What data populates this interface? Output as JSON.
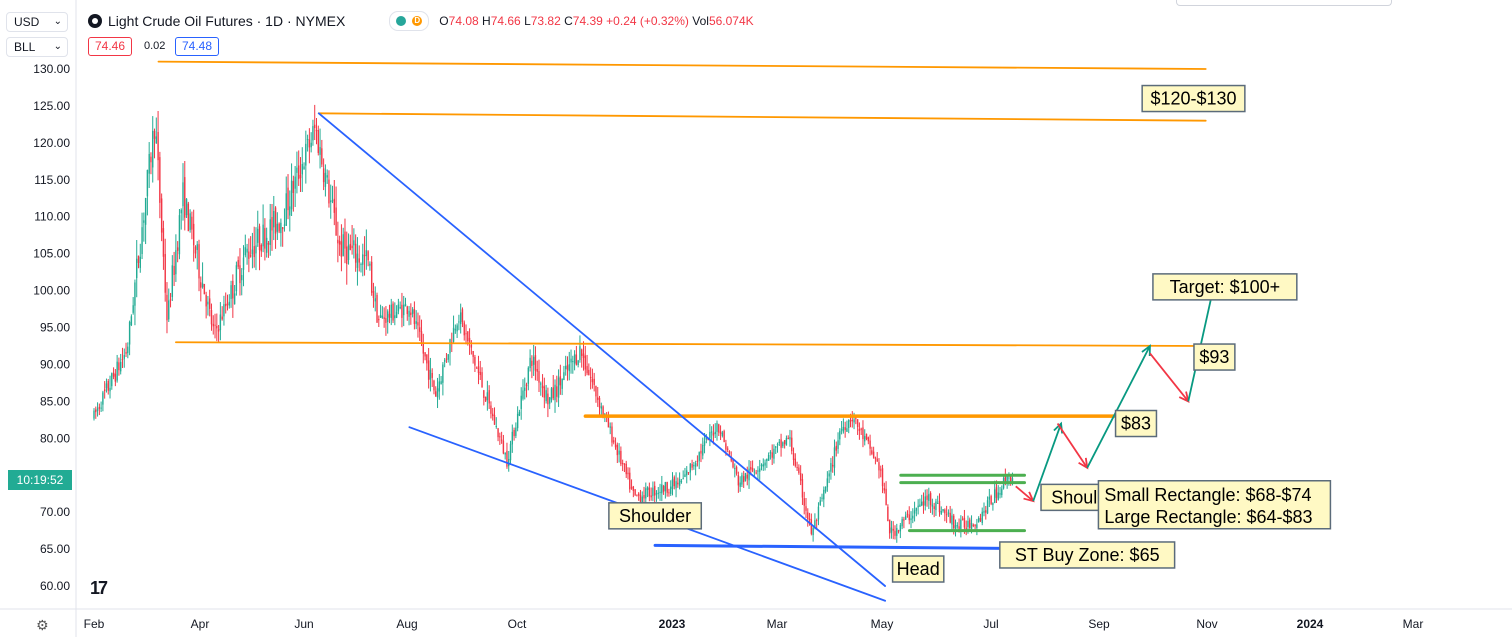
{
  "toolbar": {
    "currency": "USD",
    "unit": "BLL",
    "bid": "74.46",
    "spread": "0.02",
    "ask": "74.48",
    "countdown": "10:19:52"
  },
  "legend": {
    "symbol": "Light Crude Oil Futures · 1D · NYMEX",
    "market_status_icon": "green-dot",
    "delayed_badge": "D",
    "open_label": "O",
    "open": "74.08",
    "high_label": "H",
    "high": "74.66",
    "low_label": "L",
    "low": "73.82",
    "close_label": "C",
    "close": "74.39",
    "change": "+0.24 (+0.32%)",
    "volume_label": "Vol",
    "volume": "56.074K"
  },
  "colors": {
    "up": "#22ab94",
    "down": "#f23645",
    "orange": "#ff9800",
    "blue": "#2962ff",
    "green": "#4caf50",
    "note_bg": "#fff9c4"
  },
  "chart_data": {
    "type": "candlestick",
    "title": "Light Crude Oil Futures · 1D · NYMEX",
    "y_ticks": [
      "130.00",
      "125.00",
      "120.00",
      "115.00",
      "110.00",
      "105.00",
      "100.00",
      "95.00",
      "90.00",
      "85.00",
      "80.00",
      "75.00",
      "70.00",
      "65.00",
      "60.00"
    ],
    "x_ticks": [
      "Feb",
      "Apr",
      "Jun",
      "Aug",
      "Oct",
      "2023",
      "Mar",
      "May",
      "Jul",
      "Sep",
      "Nov",
      "2024",
      "Mar"
    ],
    "ylim": [
      57,
      133
    ],
    "last_price": 74.39,
    "price_path": [
      [
        "2022-02-01",
        83
      ],
      [
        "2022-02-20",
        92
      ],
      [
        "2022-03-08",
        123
      ],
      [
        "2022-03-15",
        96
      ],
      [
        "2022-03-24",
        113
      ],
      [
        "2022-04-11",
        94
      ],
      [
        "2022-04-29",
        105
      ],
      [
        "2022-05-20",
        110
      ],
      [
        "2022-06-08",
        122
      ],
      [
        "2022-06-22",
        106
      ],
      [
        "2022-07-08",
        104
      ],
      [
        "2022-07-14",
        96
      ],
      [
        "2022-08-01",
        98
      ],
      [
        "2022-08-16",
        86
      ],
      [
        "2022-08-29",
        97
      ],
      [
        "2022-09-26",
        77
      ],
      [
        "2022-10-10",
        91
      ],
      [
        "2022-10-20",
        85
      ],
      [
        "2022-11-07",
        92
      ],
      [
        "2022-12-08",
        72
      ],
      [
        "2023-01-04",
        74
      ],
      [
        "2023-01-25",
        82
      ],
      [
        "2023-02-06",
        74
      ],
      [
        "2023-03-07",
        80
      ],
      [
        "2023-03-20",
        67
      ],
      [
        "2023-03-30",
        75
      ],
      [
        "2023-04-05",
        81
      ],
      [
        "2023-04-12",
        83
      ],
      [
        "2023-04-28",
        76
      ],
      [
        "2023-05-04",
        67
      ],
      [
        "2023-05-26",
        72
      ],
      [
        "2023-06-12",
        68
      ],
      [
        "2023-06-23",
        69
      ],
      [
        "2023-07-11",
        75
      ],
      [
        "2023-07-14",
        74.4
      ]
    ],
    "annotations": {
      "lines": [
        {
          "name": "resistance-130",
          "color": "orange",
          "from": [
            "2022-03-10",
            131
          ],
          "to": [
            "2023-11-01",
            130
          ]
        },
        {
          "name": "resistance-124",
          "color": "orange",
          "from": [
            "2022-06-10",
            124
          ],
          "to": [
            "2023-11-01",
            123
          ]
        },
        {
          "name": "level-93",
          "color": "orange",
          "from": [
            "2022-03-20",
            93
          ],
          "to": [
            "2023-11-01",
            92.5
          ]
        },
        {
          "name": "neckline-83",
          "color": "orange",
          "from": [
            "2022-11-10",
            83
          ],
          "to": [
            "2023-09-20",
            83
          ]
        },
        {
          "name": "wedge-upper",
          "color": "blue",
          "from": [
            "2022-06-10",
            124
          ],
          "to": [
            "2023-05-01",
            60
          ]
        },
        {
          "name": "wedge-lower",
          "color": "blue",
          "from": [
            "2022-08-01",
            81.5
          ],
          "to": [
            "2023-05-01",
            58
          ]
        },
        {
          "name": "st-buy-zone",
          "color": "blue",
          "from": [
            "2022-12-20",
            65.5
          ],
          "to": [
            "2023-08-20",
            65
          ]
        },
        {
          "name": "small-rect-top",
          "color": "green",
          "from": [
            "2023-05-10",
            75
          ],
          "to": [
            "2023-07-20",
            75
          ]
        },
        {
          "name": "small-rect-mid",
          "color": "green",
          "from": [
            "2023-05-10",
            74
          ],
          "to": [
            "2023-07-20",
            74
          ]
        },
        {
          "name": "small-rect-bottom",
          "color": "green",
          "from": [
            "2023-05-15",
            67.5
          ],
          "to": [
            "2023-07-20",
            67.5
          ]
        }
      ],
      "arrows": [
        {
          "color": "red",
          "from": [
            "2023-07-15",
            73.5
          ],
          "to": [
            "2023-07-25",
            71.5
          ]
        },
        {
          "color": "green",
          "from": [
            "2023-07-25",
            71.5
          ],
          "to": [
            "2023-08-10",
            82
          ]
        },
        {
          "color": "red",
          "from": [
            "2023-08-08",
            82
          ],
          "to": [
            "2023-08-25",
            76
          ]
        },
        {
          "color": "green",
          "from": [
            "2023-08-25",
            76
          ],
          "to": [
            "2023-09-30",
            92.5
          ]
        },
        {
          "color": "red",
          "from": [
            "2023-09-30",
            91.5
          ],
          "to": [
            "2023-10-22",
            85
          ]
        },
        {
          "color": "green",
          "from": [
            "2023-10-22",
            85
          ],
          "to": [
            "2023-11-06",
            101
          ]
        }
      ],
      "labels": [
        {
          "text": "$120-$130",
          "at": [
            "2023-10-25",
            126
          ]
        },
        {
          "text": "Target: $100+",
          "at": [
            "2023-11-12",
            100.5
          ]
        },
        {
          "text": "$93",
          "at": [
            "2023-11-06",
            91
          ]
        },
        {
          "text": "$83",
          "at": [
            "2023-09-22",
            82
          ]
        },
        {
          "text": "Shoulder",
          "at": [
            "2022-12-20",
            69.5
          ]
        },
        {
          "text": "Shoulder",
          "at": [
            "2023-08-25",
            72
          ]
        },
        {
          "text": "Head",
          "at": [
            "2023-05-20",
            62.3
          ]
        },
        {
          "text": "ST Buy Zone: $65",
          "at": [
            "2023-08-25",
            64.2
          ]
        }
      ],
      "rectangle_notes": [
        "Small Rectangle: $68-$74",
        "Large Rectangle: $64-$83"
      ],
      "rectangle_notes_at": [
        "2023-11-06",
        71
      ]
    }
  }
}
